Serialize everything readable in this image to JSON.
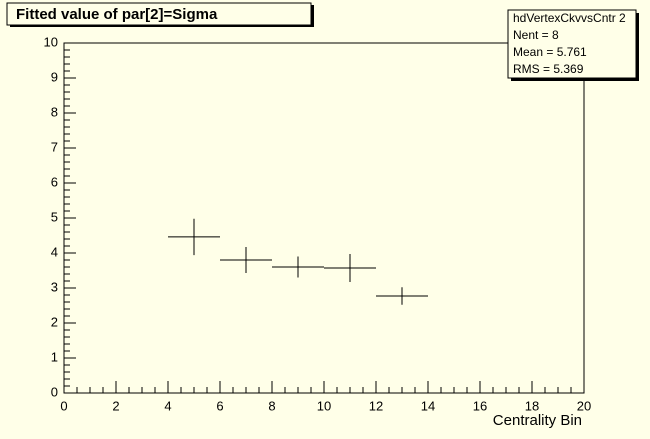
{
  "chart_data": {
    "type": "errorcross",
    "title": "Fitted value of par[2]=Sigma",
    "x_label": "Centrality Bin",
    "x": [
      5,
      7,
      9,
      11,
      13
    ],
    "xerr": [
      1,
      1,
      1,
      1,
      1
    ],
    "values": [
      4.46,
      3.8,
      3.6,
      3.57,
      2.77
    ],
    "yerr": [
      0.52,
      0.37,
      0.3,
      0.4,
      0.25
    ],
    "color": "#000000",
    "xlim": [
      0,
      20
    ],
    "xticks": [
      0,
      2,
      4,
      6,
      8,
      10,
      12,
      14,
      16,
      18,
      20
    ],
    "ylim": [
      0,
      10
    ],
    "yticks": [
      0,
      1,
      2,
      3,
      4,
      5,
      6,
      7,
      8,
      9,
      10
    ],
    "stats": {
      "name": "hdVertexCkvvsCntr 2",
      "lines": [
        "Nent = 8",
        "Mean  = 5.761",
        "RMS   = 5.369"
      ]
    }
  }
}
